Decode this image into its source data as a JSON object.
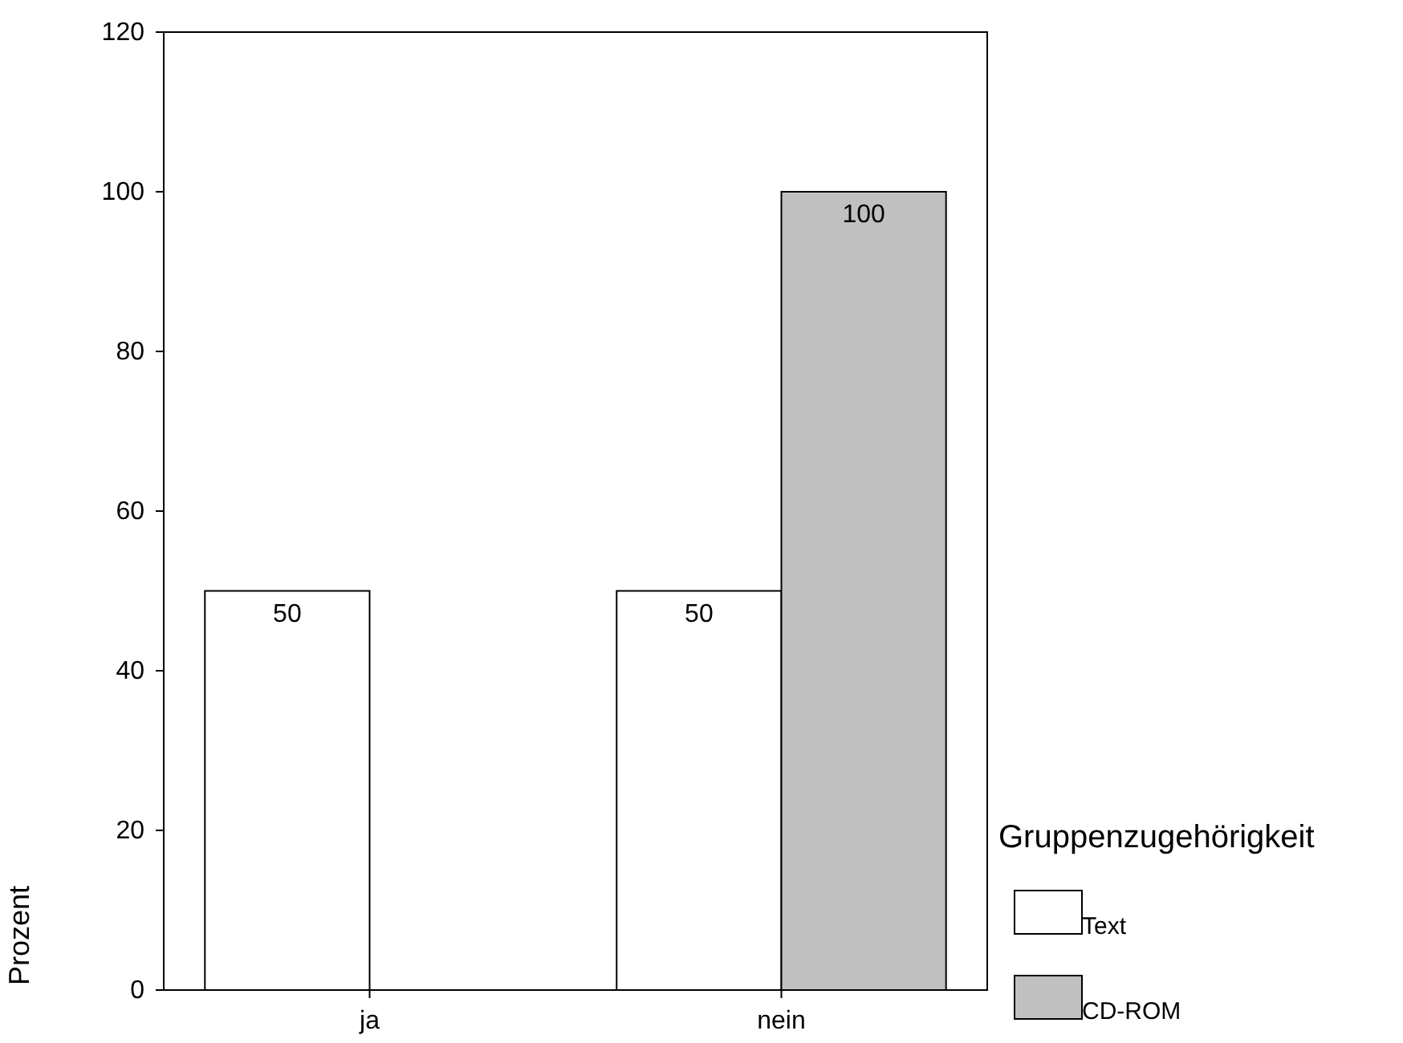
{
  "chart_data": {
    "type": "bar",
    "ylabel": "Prozent",
    "legend_title": "Gruppenzugehörigkeit",
    "categories": [
      "ja",
      "nein"
    ],
    "series": [
      {
        "name": "Text",
        "color": "#ffffff",
        "values": [
          50,
          50
        ],
        "value_labels": [
          "50",
          "50"
        ]
      },
      {
        "name": "CD-ROM",
        "color": "#c0c0c0",
        "values": [
          0,
          100
        ],
        "value_labels": [
          null,
          "100"
        ]
      }
    ],
    "ylim": [
      0,
      120
    ],
    "yticks": [
      0,
      20,
      40,
      60,
      80,
      100,
      120
    ],
    "grid": false,
    "legend": "bottom right"
  }
}
